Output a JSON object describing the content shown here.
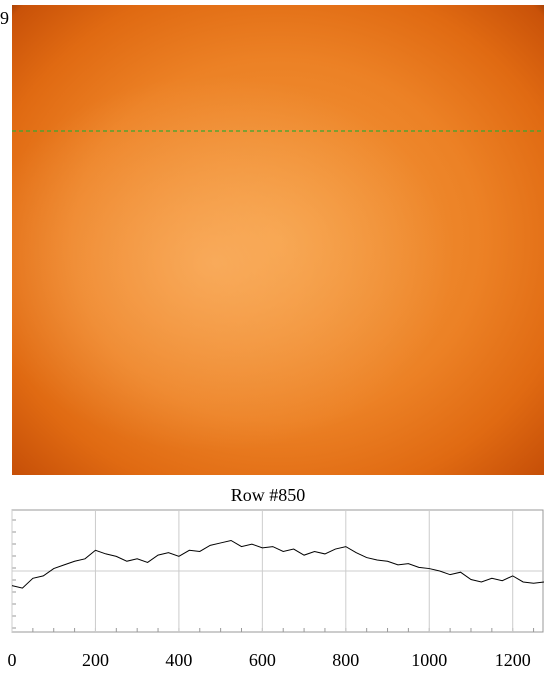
{
  "corner_label": "9",
  "chart_data": {
    "type": "line",
    "title": "Row #850",
    "x": [
      0,
      25,
      50,
      75,
      100,
      125,
      150,
      175,
      200,
      225,
      250,
      275,
      300,
      325,
      350,
      375,
      400,
      425,
      450,
      475,
      500,
      525,
      550,
      575,
      600,
      625,
      650,
      675,
      700,
      725,
      750,
      775,
      800,
      825,
      850,
      875,
      900,
      925,
      950,
      975,
      1000,
      1025,
      1050,
      1075,
      1100,
      1125,
      1150,
      1175,
      1200,
      1225,
      1250,
      1275
    ],
    "series": [
      {
        "name": "Row #850",
        "color": "#000000",
        "values": [
          38,
          36,
          44,
          46,
          52,
          55,
          58,
          60,
          67,
          64,
          62,
          58,
          60,
          57,
          63,
          65,
          62,
          67,
          66,
          71,
          73,
          75,
          70,
          72,
          69,
          70,
          66,
          68,
          63,
          66,
          64,
          68,
          70,
          65,
          61,
          59,
          58,
          55,
          56,
          53,
          52,
          50,
          47,
          49,
          43,
          41,
          44,
          42,
          46,
          41,
          40,
          41
        ]
      }
    ],
    "xlim": [
      0,
      1275
    ],
    "xticks": [
      0,
      200,
      400,
      600,
      800,
      1000,
      1200
    ],
    "ylim": [
      0,
      100
    ],
    "ygrid": [
      50
    ],
    "grid": true
  }
}
